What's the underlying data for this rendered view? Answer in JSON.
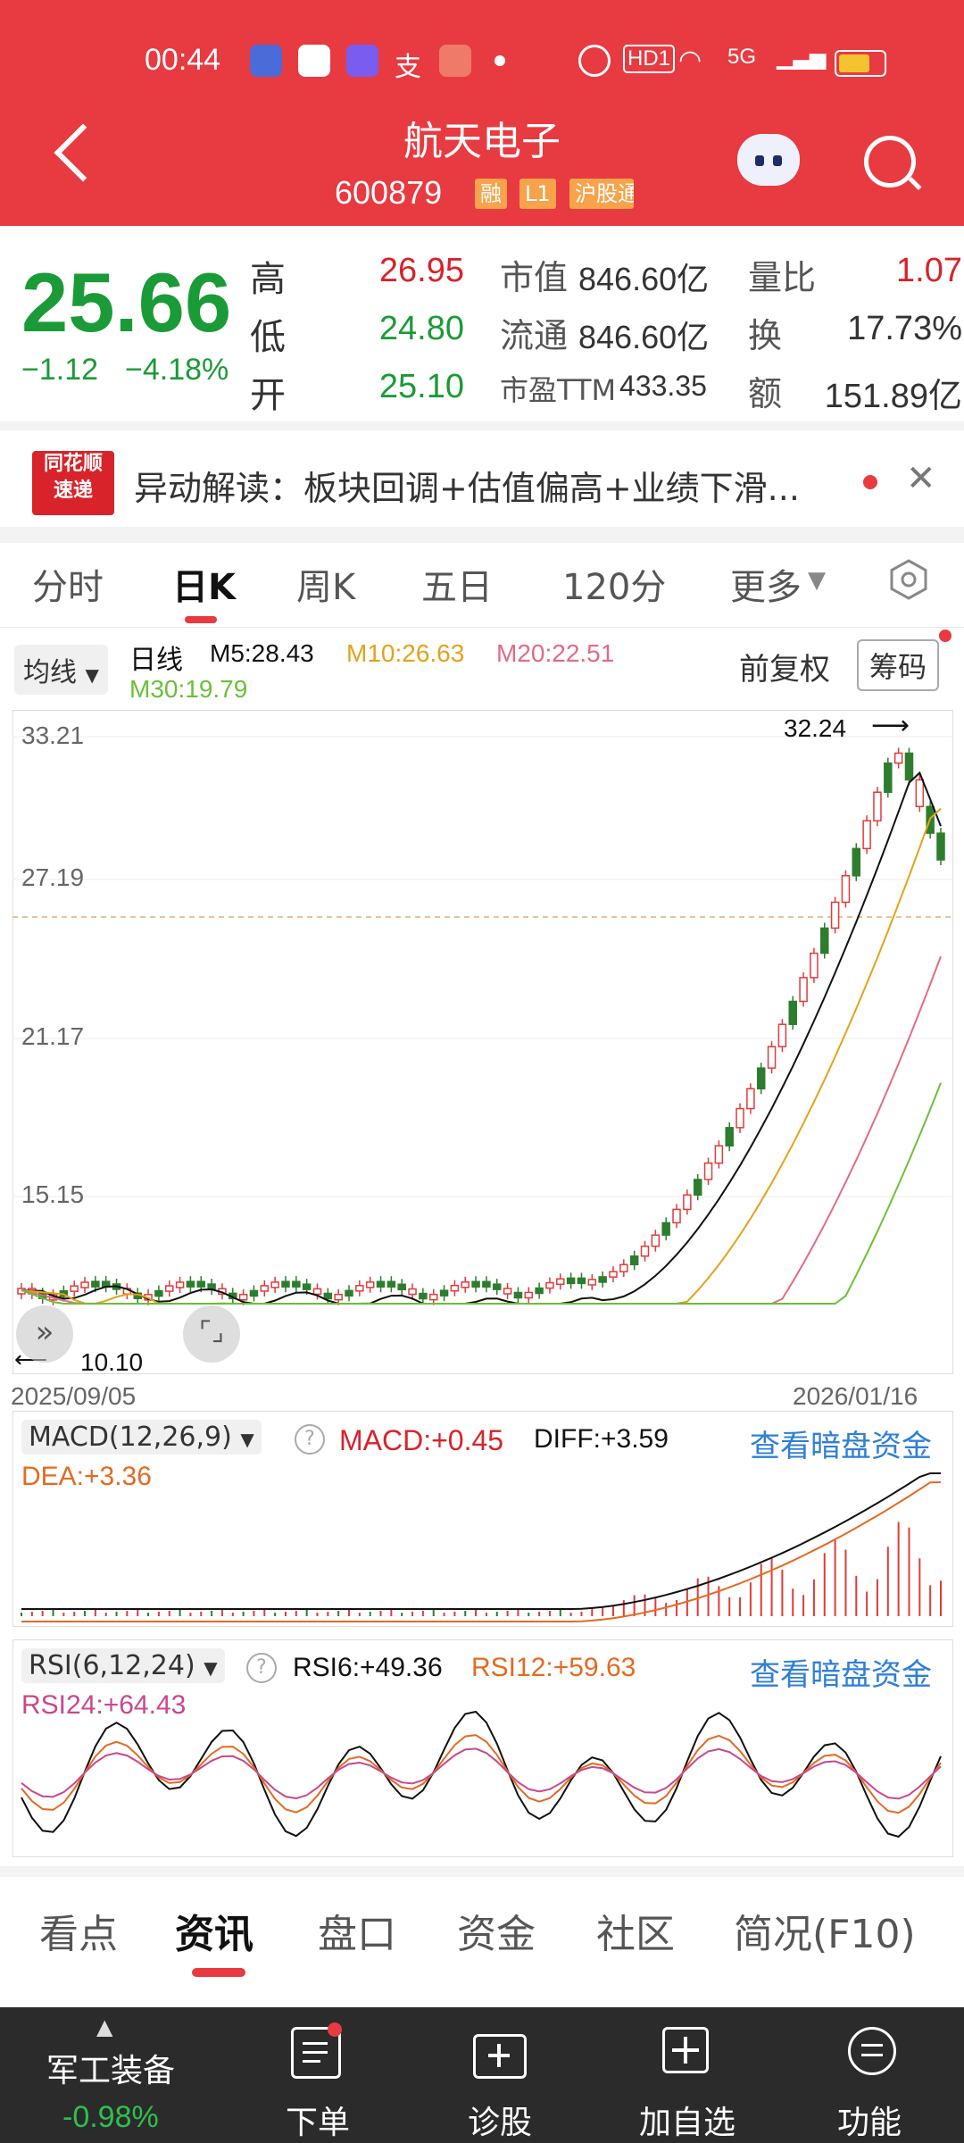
{
  "status_bar": {
    "time": "00:44",
    "network": "5G",
    "hd": "HD1"
  },
  "header": {
    "title": "航天电子",
    "code": "600879",
    "tags": [
      "融",
      "L1",
      "沪股通"
    ]
  },
  "quote": {
    "price": "25.66",
    "change": "−1.12",
    "change_pct": "−4.18%",
    "rows": [
      {
        "label": "高",
        "value": "26.95",
        "label2": "市值",
        "value2": "846.60亿",
        "label3": "量比",
        "value3": "1.07"
      },
      {
        "label": "低",
        "value": "24.80",
        "label2": "流通",
        "value2": "846.60亿",
        "label3": "换",
        "value3": "17.73%"
      },
      {
        "label": "开",
        "value": "25.10",
        "label2": "市盈TTM",
        "value2": "433.35",
        "label3": "额",
        "value3": "151.89亿"
      }
    ]
  },
  "news": {
    "logo_line1": "同花顺",
    "logo_line2": "速递",
    "text": "异动解读：板块回调+估值偏高+业绩下滑..."
  },
  "chart_tabs": [
    "分时",
    "日K",
    "周K",
    "五日",
    "120分",
    "更多"
  ],
  "kline": {
    "indicator_select": "均线",
    "period": "日线",
    "ma5": "M5:28.43",
    "ma10": "M10:26.63",
    "ma20": "M20:22.51",
    "ma30": "M30:19.79",
    "adjust": "前复权",
    "chip_button": "筹码",
    "y_ticks": [
      "33.21",
      "27.19",
      "21.17",
      "15.15"
    ],
    "high_mark": "32.24",
    "low_mark": "10.10",
    "date_start": "2025/09/05",
    "date_end": "2026/01/16",
    "colors": {
      "up": "#e03b3b",
      "down": "#2e7d2e",
      "ma5": "#111111",
      "ma10": "#e3a21a",
      "ma20": "#e36a86",
      "ma30": "#6bbf3a"
    }
  },
  "macd": {
    "select": "MACD(12,26,9)",
    "macd": "MACD:+0.45",
    "diff": "DIFF:+3.59",
    "dea": "DEA:+3.36",
    "link": "查看暗盘资金"
  },
  "rsi": {
    "select": "RSI(6,12,24)",
    "rsi6": "RSI6:+49.36",
    "rsi12": "RSI12:+59.63",
    "rsi24": "RSI24:+64.43",
    "link": "查看暗盘资金"
  },
  "bottom_tabs": [
    "看点",
    "资讯",
    "盘口",
    "资金",
    "社区",
    "简况(F10)"
  ],
  "bottom_bar": {
    "sector": "军工装备",
    "sector_chg": "-0.98%",
    "items": [
      "下单",
      "诊股",
      "加自选",
      "功能"
    ]
  }
}
